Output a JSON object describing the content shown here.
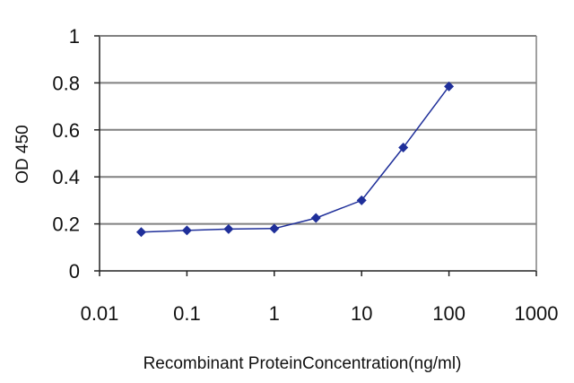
{
  "chart_data": {
    "type": "line",
    "title": "",
    "xlabel": "Recombinant ProteinConcentration(ng/ml)",
    "ylabel": "OD 450",
    "x_scale": "log",
    "xlim": [
      0.01,
      1000
    ],
    "ylim": [
      0,
      1
    ],
    "x_ticks": [
      "0.01",
      "0.1",
      "1",
      "10",
      "100",
      "1000"
    ],
    "y_ticks": [
      "0",
      "0.2",
      "0.4",
      "0.6",
      "0.8",
      "1"
    ],
    "grid": "horizontal",
    "legend": "none",
    "series": [
      {
        "x": [
          0.03,
          0.1,
          0.3,
          1,
          3,
          10,
          30,
          100
        ],
        "y": [
          0.165,
          0.172,
          0.178,
          0.18,
          0.225,
          0.3,
          0.525,
          0.785
        ],
        "color": "#1f2f9a",
        "marker": "diamond"
      }
    ]
  }
}
